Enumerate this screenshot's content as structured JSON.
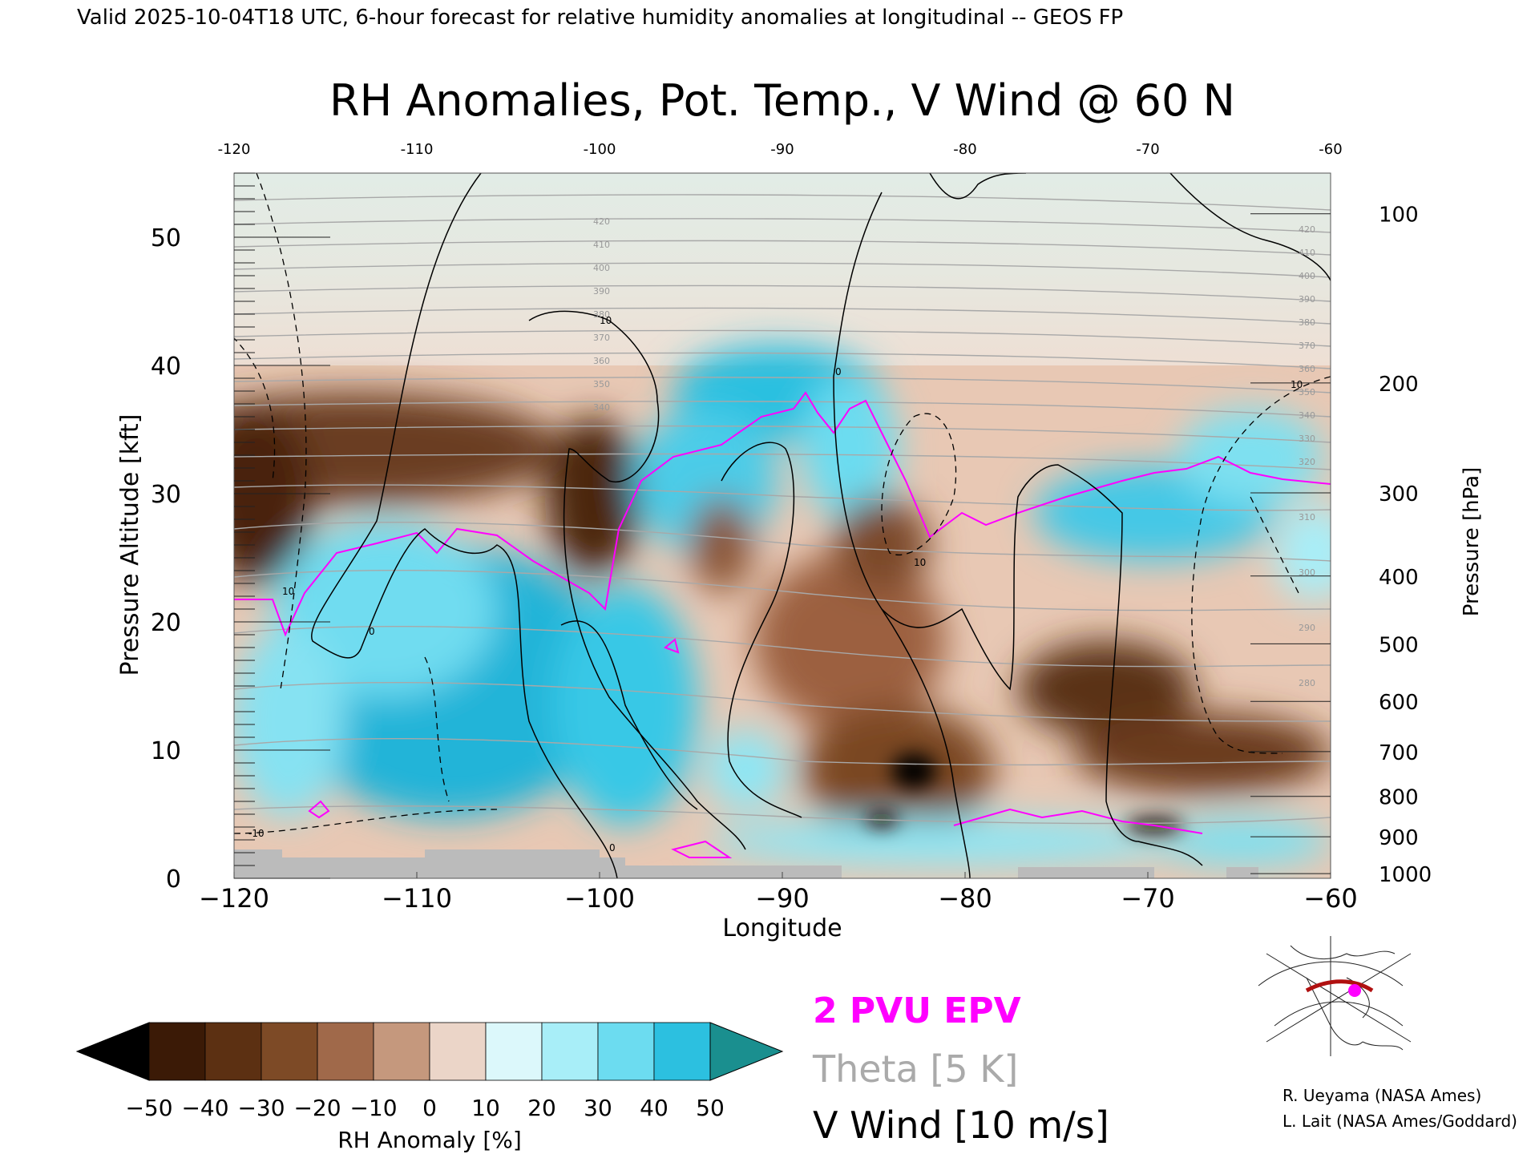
{
  "header": "Valid 2025-10-04T18 UTC, 6-hour forecast for relative humidity anomalies at longitudinal -- GEOS FP",
  "title": "RH Anomalies, Pot. Temp., V Wind @ 60 N",
  "legend": {
    "epv": "2 PVU EPV",
    "theta": "Theta [5 K]",
    "vwind": "V Wind [10 m/s]",
    "epv_color": "#ff00ff",
    "theta_color": "#aaaaaa",
    "vwind_color": "#000000"
  },
  "credits": [
    "R. Ueyama (NASA Ames)",
    "L. Lait (NASA Ames/Goddard)"
  ],
  "chart_data": {
    "type": "heatmap",
    "title": "RH Anomalies, Pot. Temp., V Wind @ 60 N",
    "xlabel": "Longitude",
    "ylabel_left": "Pressure Altitude [kft]",
    "ylabel_right": "Pressure [hPa]",
    "xlim": [
      -120,
      -60
    ],
    "ylim": [
      0,
      55
    ],
    "x_ticks": [
      "−120",
      "−110",
      "−100",
      "−90",
      "−80",
      "−70",
      "−60"
    ],
    "x_ticks_top": [
      "-120",
      "-110",
      "-100",
      "-90",
      "-80",
      "-70",
      "-60"
    ],
    "y_ticks": [
      "0",
      "10",
      "20",
      "30",
      "40",
      "50"
    ],
    "pressure_ticks": [
      "100",
      "200",
      "300",
      "400",
      "500",
      "600",
      "700",
      "800",
      "900",
      "1000"
    ],
    "theta_labels": [
      "420",
      "410",
      "400",
      "390",
      "380",
      "370",
      "360",
      "350",
      "340",
      "330",
      "320",
      "310",
      "300",
      "290",
      "280"
    ],
    "vwind_labels": [
      "10",
      "0",
      "-10"
    ],
    "colorbar": {
      "label": "RH Anomaly [%]",
      "ticks": [
        "−50",
        "−40",
        "−30",
        "−20",
        "−10",
        "0",
        "10",
        "20",
        "30",
        "40",
        "50"
      ],
      "colors": [
        "#3b1a06",
        "#5c3012",
        "#7d4a26",
        "#a0694a",
        "#c5987d",
        "#ebd5c8",
        "#dcf8fb",
        "#a8eef8",
        "#6cdcf0",
        "#2cc0e0",
        "#0b90b8"
      ],
      "under_color": "#000000",
      "over_color": "#1a8f8f"
    }
  }
}
